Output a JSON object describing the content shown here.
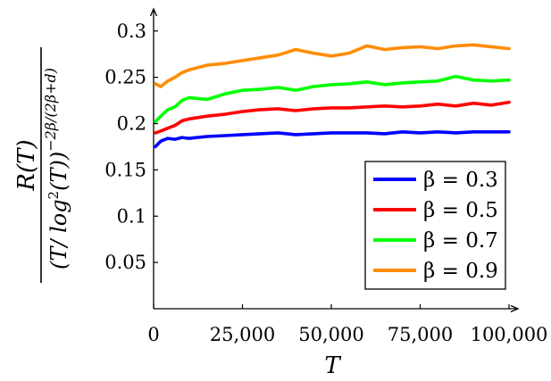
{
  "chart_data": {
    "type": "line",
    "xlabel": "T",
    "ylabel": "R(T) / (T/log²(T))^(−2β/(2β+d))",
    "ylabel_parts": {
      "numerator": "R(T)",
      "den_open": "(T/ log",
      "den_sup2": "2",
      "den_mid": "(T))",
      "den_exponent": "−2β/(2β+d)"
    },
    "xlim": [
      0,
      100000
    ],
    "ylim": [
      0,
      0.32
    ],
    "xticks": [
      0,
      25000,
      50000,
      75000,
      100000
    ],
    "xtick_labels": [
      "0",
      "25,000",
      "50,000",
      "75,000",
      "100,000"
    ],
    "yticks": [
      0.05,
      0.1,
      0.15,
      0.2,
      0.25,
      0.3
    ],
    "ytick_labels": [
      "0.05",
      "0.1",
      "0.15",
      "0.2",
      "0.25",
      "0.3"
    ],
    "grid": false,
    "legend_position": "bottom-right",
    "series": [
      {
        "name": "β = 0.3",
        "color": "#0000ff",
        "x": [
          500,
          2000,
          4000,
          6000,
          8000,
          10000,
          15000,
          20000,
          25000,
          30000,
          35000,
          40000,
          45000,
          50000,
          55000,
          60000,
          65000,
          70000,
          75000,
          80000,
          85000,
          90000,
          95000,
          100000
        ],
        "y": [
          0.175,
          0.181,
          0.184,
          0.183,
          0.185,
          0.184,
          0.186,
          0.187,
          0.188,
          0.189,
          0.19,
          0.188,
          0.189,
          0.19,
          0.19,
          0.19,
          0.189,
          0.191,
          0.19,
          0.191,
          0.19,
          0.191,
          0.191,
          0.191
        ]
      },
      {
        "name": "β = 0.5",
        "color": "#ff0000",
        "x": [
          500,
          2000,
          4000,
          6000,
          8000,
          10000,
          15000,
          20000,
          25000,
          30000,
          35000,
          40000,
          45000,
          50000,
          55000,
          60000,
          65000,
          70000,
          75000,
          80000,
          85000,
          90000,
          95000,
          100000
        ],
        "y": [
          0.19,
          0.192,
          0.195,
          0.198,
          0.203,
          0.205,
          0.208,
          0.21,
          0.213,
          0.215,
          0.216,
          0.214,
          0.216,
          0.217,
          0.217,
          0.218,
          0.219,
          0.218,
          0.219,
          0.221,
          0.219,
          0.222,
          0.22,
          0.223
        ]
      },
      {
        "name": "β = 0.7",
        "color": "#00ff00",
        "x": [
          500,
          2000,
          4000,
          6000,
          8000,
          10000,
          15000,
          20000,
          25000,
          30000,
          35000,
          40000,
          45000,
          50000,
          55000,
          60000,
          65000,
          70000,
          75000,
          80000,
          85000,
          90000,
          95000,
          100000
        ],
        "y": [
          0.202,
          0.208,
          0.215,
          0.218,
          0.225,
          0.228,
          0.226,
          0.232,
          0.236,
          0.237,
          0.239,
          0.236,
          0.24,
          0.242,
          0.243,
          0.245,
          0.242,
          0.244,
          0.245,
          0.246,
          0.251,
          0.247,
          0.246,
          0.247
        ]
      },
      {
        "name": "β = 0.9",
        "color": "#ff8c00",
        "x": [
          500,
          2000,
          4000,
          6000,
          8000,
          10000,
          15000,
          20000,
          25000,
          30000,
          35000,
          40000,
          45000,
          50000,
          55000,
          60000,
          65000,
          70000,
          75000,
          80000,
          85000,
          90000,
          95000,
          100000
        ],
        "y": [
          0.243,
          0.24,
          0.246,
          0.25,
          0.255,
          0.258,
          0.263,
          0.265,
          0.268,
          0.271,
          0.274,
          0.28,
          0.276,
          0.273,
          0.276,
          0.284,
          0.28,
          0.282,
          0.283,
          0.281,
          0.284,
          0.285,
          0.283,
          0.281
        ]
      }
    ]
  }
}
